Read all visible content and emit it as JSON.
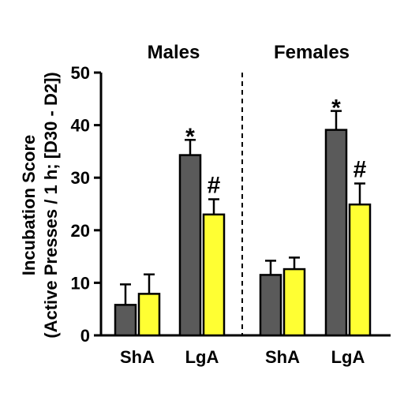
{
  "chart_data": {
    "type": "bar",
    "ylabel_line1": "Incubation Score",
    "ylabel_line2": "(Active Presses / 1 h; [D30 -  D2])",
    "ylim": [
      0,
      50
    ],
    "yticks": [
      0,
      10,
      20,
      30,
      40,
      50
    ],
    "groups": [
      {
        "title": "Males",
        "categories": [
          {
            "label": "ShA",
            "bars": [
              {
                "value": 5.8,
                "error": 3.9,
                "marker": ""
              },
              {
                "value": 7.9,
                "error": 3.7,
                "marker": ""
              }
            ]
          },
          {
            "label": "LgA",
            "bars": [
              {
                "value": 34.3,
                "error": 2.9,
                "marker": "*"
              },
              {
                "value": 23.0,
                "error": 2.9,
                "marker": "#"
              }
            ]
          }
        ]
      },
      {
        "title": "Females",
        "categories": [
          {
            "label": "ShA",
            "bars": [
              {
                "value": 11.5,
                "error": 2.7,
                "marker": ""
              },
              {
                "value": 12.6,
                "error": 2.2,
                "marker": ""
              }
            ]
          },
          {
            "label": "LgA",
            "bars": [
              {
                "value": 39.1,
                "error": 3.6,
                "marker": "*"
              },
              {
                "value": 24.9,
                "error": 4.0,
                "marker": "#"
              }
            ]
          }
        ]
      }
    ],
    "bar_colors": [
      "#5a5a5a",
      "#ffff33"
    ],
    "group_divider": "dashed",
    "grid": false,
    "legend": "none"
  }
}
